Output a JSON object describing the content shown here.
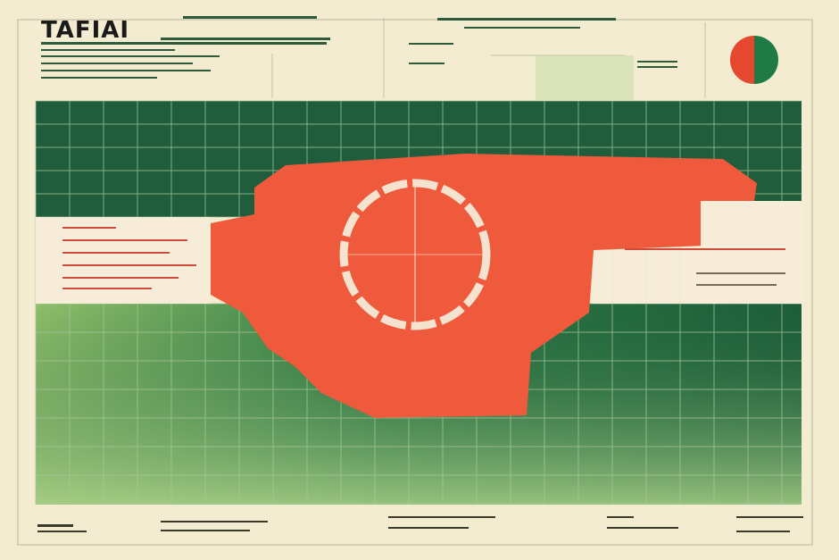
{
  "header": {
    "title": "TAFIAI"
  }
}
